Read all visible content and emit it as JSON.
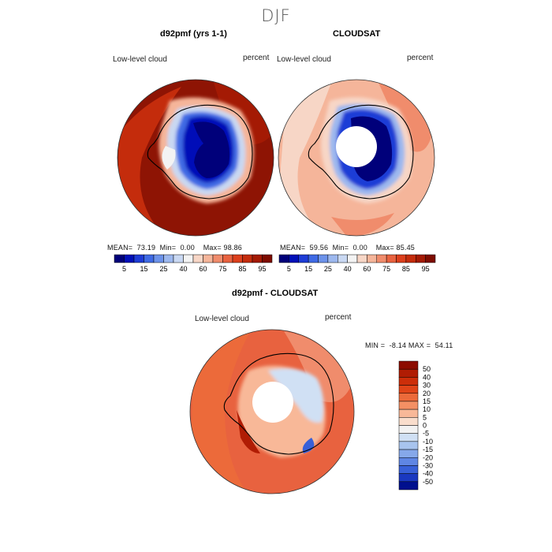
{
  "season": "DJF",
  "panels": [
    {
      "title": "d92pmf (yrs 1-1)",
      "field_label": "Low-level cloud",
      "units": "percent",
      "stats": {
        "mean_label": "MEAN=",
        "mean": "73.19",
        "min_label": "Min=",
        "min": "0.00",
        "max_label": "Max=",
        "max": "98.86"
      }
    },
    {
      "title": "CLOUDSAT",
      "field_label": "Low-level cloud",
      "units": "percent",
      "stats": {
        "mean_label": "MEAN=",
        "mean": "59.56",
        "min_label": "Min=",
        "min": "0.00",
        "max_label": "Max=",
        "max": "85.45"
      }
    },
    {
      "title": "d92pmf - CLOUDSAT",
      "field_label": "Low-level cloud",
      "units": "percent",
      "stats": {
        "min_label": "MIN =",
        "min": "-8.14",
        "max_label": "MAX =",
        "max": "54.11"
      }
    }
  ],
  "colorbar_abs": {
    "labels": [
      "5",
      "15",
      "25",
      "40",
      "60",
      "75",
      "85",
      "95"
    ],
    "colors": [
      "#00007a",
      "#0010b8",
      "#1e3cd6",
      "#3f6ae4",
      "#6d93ea",
      "#9db8ee",
      "#c9d8f2",
      "#f3f3f3",
      "#f7d6c6",
      "#f5b59a",
      "#f08c6c",
      "#e8623f",
      "#dc3f1c",
      "#c42c0c",
      "#a41a04",
      "#7e0c00"
    ]
  },
  "colorbar_diff": {
    "labels": [
      "50",
      "40",
      "30",
      "20",
      "15",
      "10",
      "5",
      "0",
      "-5",
      "-10",
      "-15",
      "-20",
      "-30",
      "-40",
      "-50"
    ],
    "colors": [
      "#8c0c00",
      "#b01c04",
      "#cc2e0a",
      "#e04418",
      "#ec6a3a",
      "#f49064",
      "#f8b898",
      "#f9ddcc",
      "#f2f2f2",
      "#d0e0f4",
      "#a8c4ee",
      "#86a8ea",
      "#5f86e4",
      "#3860d8",
      "#1a38c0",
      "#00108e"
    ]
  }
}
